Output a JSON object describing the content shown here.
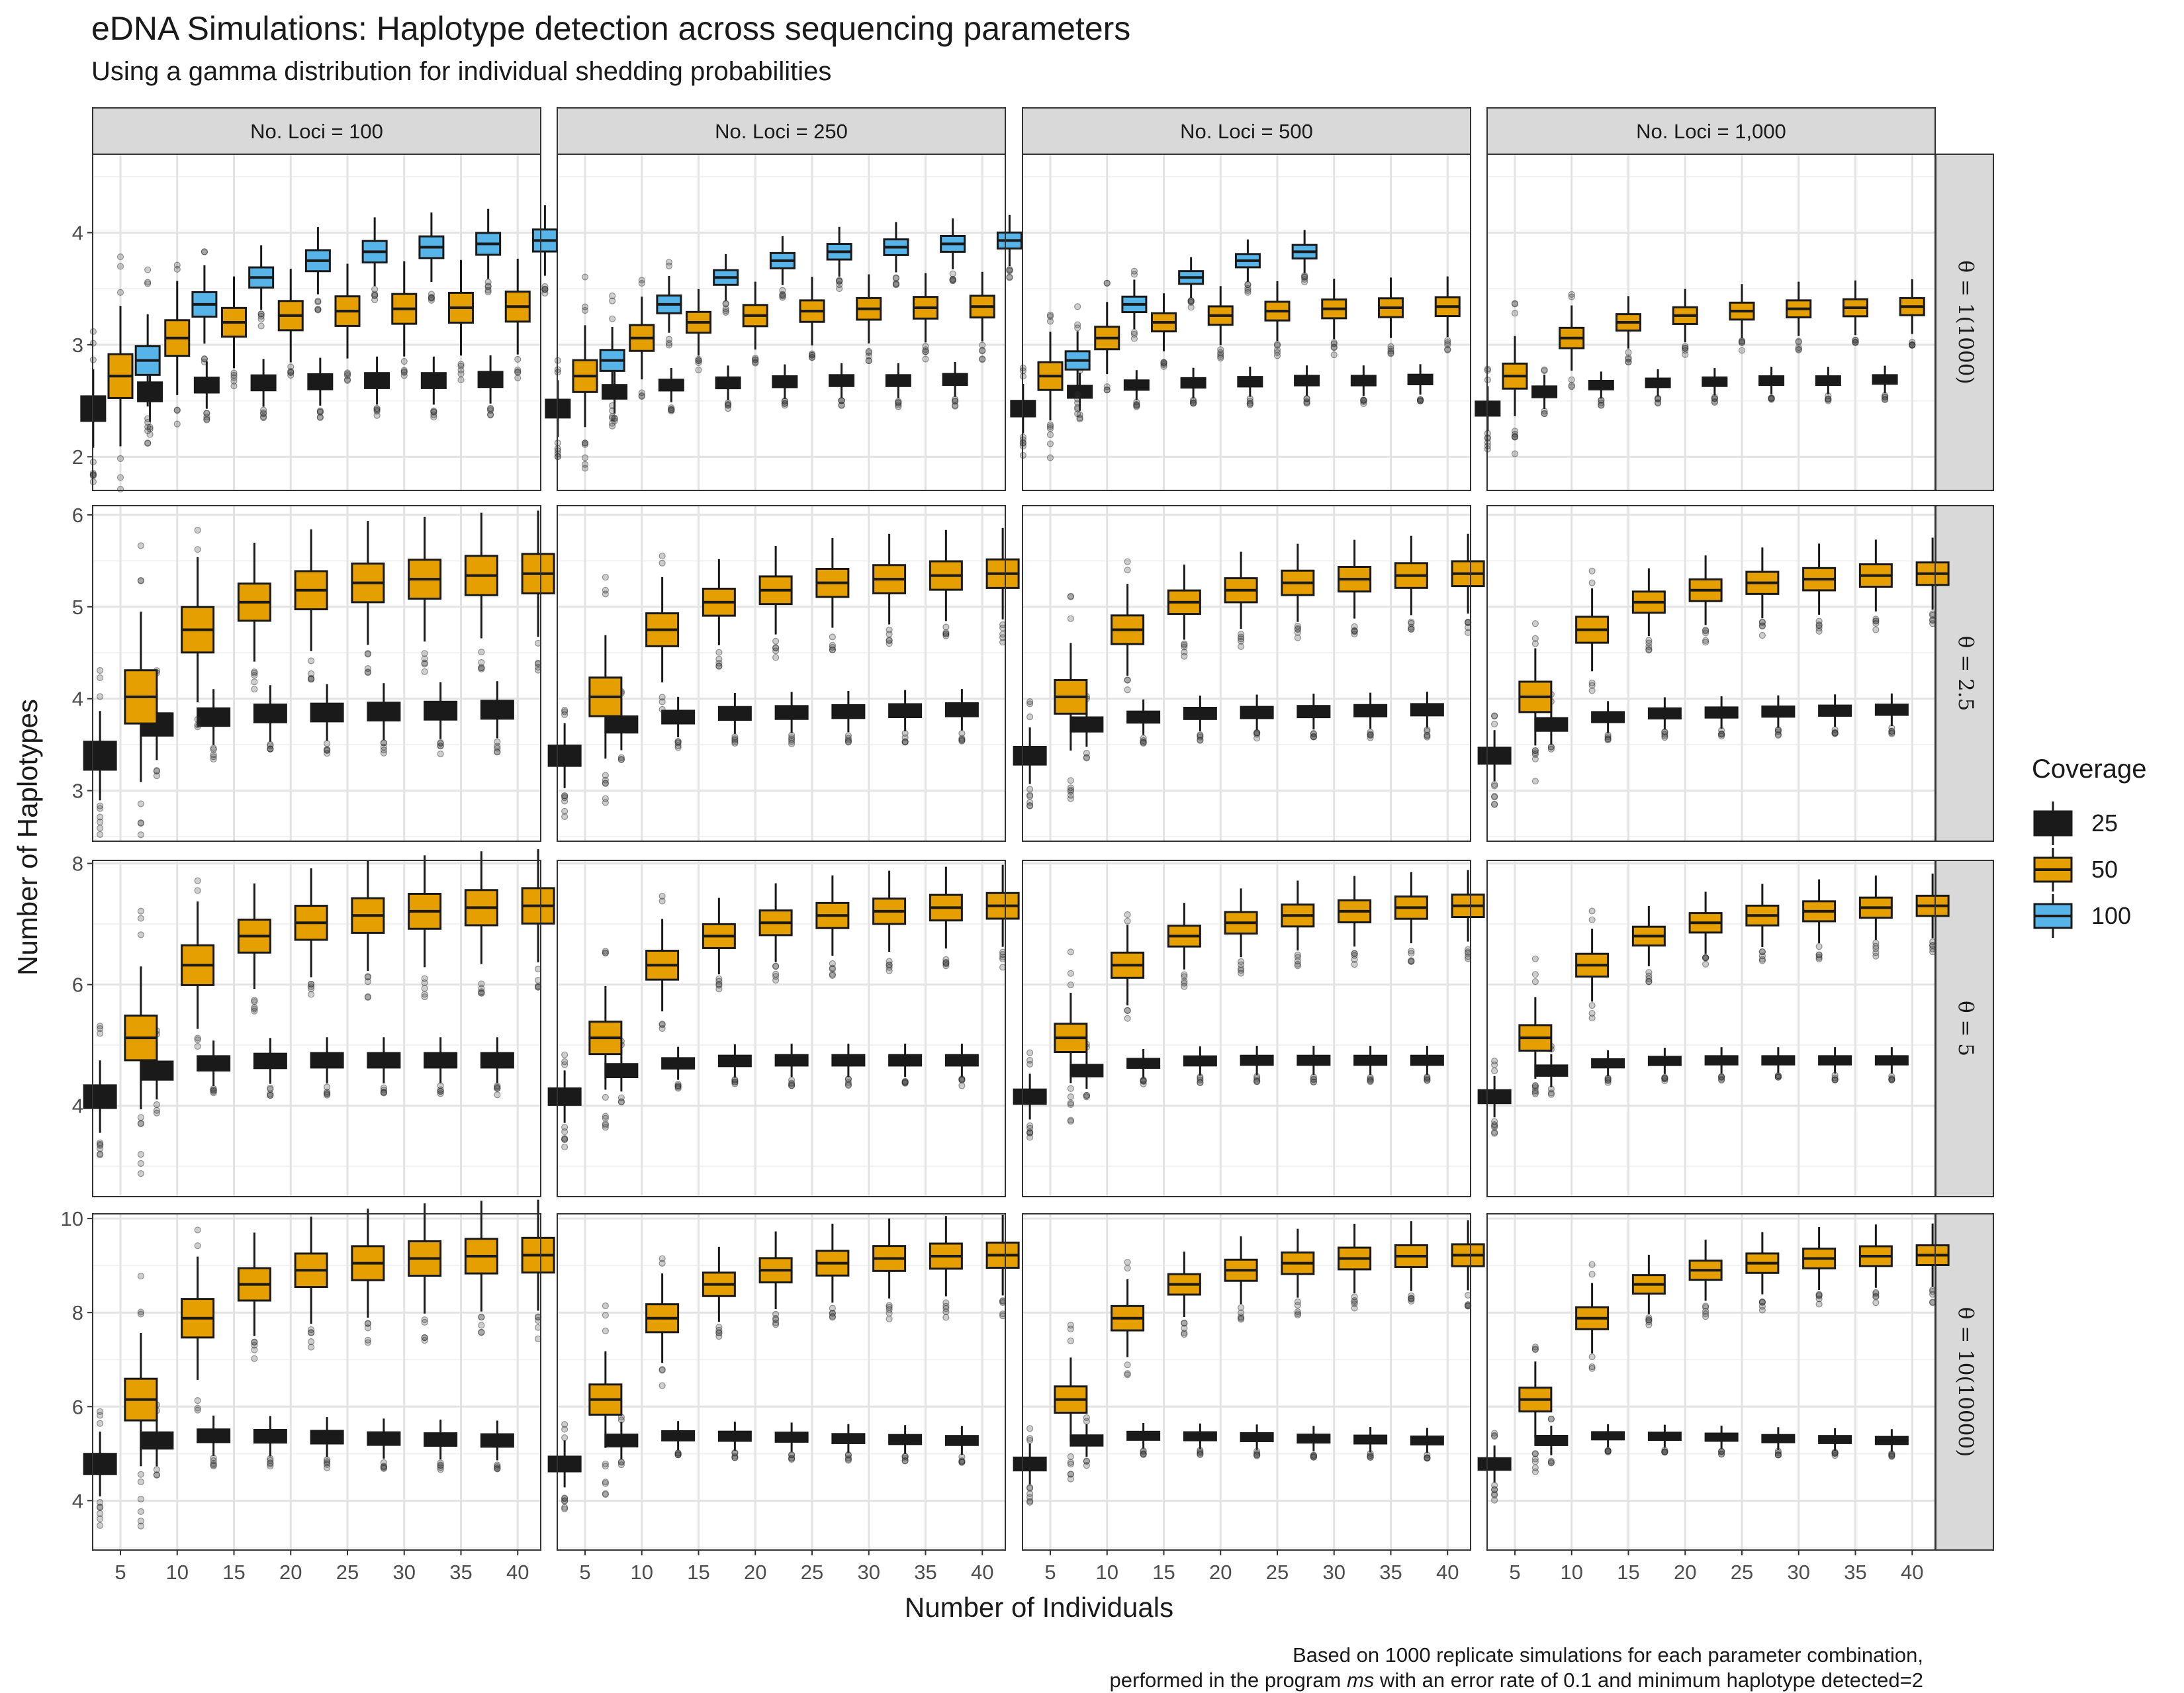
{
  "title": "eDNA Simulations: Haplotype detection across sequencing parameters",
  "subtitle": "Using a gamma distribution for individual shedding probabilities",
  "caption": {
    "line1": "Based on 1000 replicate simulations for each parameter combination,",
    "line2_prefix": "performed in the program ",
    "line2_program": "ms",
    "line2_suffix": " with an error rate of 0.1 and minimum haplotype detected=2"
  },
  "legend": {
    "title": "Coverage",
    "items": [
      {
        "label": "25",
        "color": "#1a1a1a"
      },
      {
        "label": "50",
        "color": "#E69F00"
      },
      {
        "label": "100",
        "color": "#56B4E9"
      }
    ]
  },
  "chart_data": {
    "type": "boxplot",
    "title": "eDNA Simulations: Haplotype detection across sequencing parameters",
    "subtitle": "Using a gamma distribution for individual shedding probabilities",
    "xlabel": "Number of Individuals",
    "ylabel": "Number of Haplotypes",
    "x_ticks": [
      5,
      10,
      15,
      20,
      25,
      30,
      35,
      40
    ],
    "legend_title": "Coverage",
    "legend_position": "right",
    "grid": true,
    "columns": [
      "No. Loci = 100",
      "No. Loci = 250",
      "No. Loci = 500",
      "No. Loci = 1,000"
    ],
    "rows": [
      {
        "label": "θ = 1(1000)",
        "ylim": [
          1.7,
          4.7
        ],
        "y_ticks": [
          2,
          3,
          4
        ],
        "series": [
          {
            "name": "25",
            "values": [
              2.43,
              2.58,
              2.64,
              2.66,
              2.67,
              2.68,
              2.68,
              2.69
            ]
          },
          {
            "name": "50",
            "values": [
              2.72,
              3.06,
              3.2,
              3.26,
              3.3,
              3.32,
              3.33,
              3.34
            ]
          },
          {
            "name": "100",
            "values": [
              2.86,
              3.36,
              3.6,
              3.75,
              3.83,
              3.87,
              3.9,
              3.93
            ]
          }
        ],
        "series_limits": {
          "100": [
            "x≤40",
            "x≤40",
            "x≤25",
            "none"
          ]
        }
      },
      {
        "label": "θ = 2.5",
        "ylim": [
          2.45,
          6.1
        ],
        "y_ticks": [
          3,
          4,
          5,
          6
        ],
        "series": [
          {
            "name": "25",
            "values": [
              3.38,
              3.72,
              3.8,
              3.84,
              3.85,
              3.86,
              3.87,
              3.88
            ]
          },
          {
            "name": "50",
            "values": [
              4.02,
              4.75,
              5.05,
              5.18,
              5.26,
              5.3,
              5.34,
              5.36
            ]
          }
        ]
      },
      {
        "label": "θ = 5",
        "ylim": [
          2.5,
          8.05
        ],
        "y_ticks": [
          4,
          6,
          8
        ],
        "series": [
          {
            "name": "25",
            "values": [
              4.15,
              4.58,
              4.7,
              4.74,
              4.75,
              4.75,
              4.75,
              4.75
            ]
          },
          {
            "name": "50",
            "values": [
              5.12,
              6.32,
              6.8,
              7.02,
              7.14,
              7.21,
              7.27,
              7.3
            ]
          }
        ]
      },
      {
        "label": "θ = 10(10000)",
        "ylim": [
          2.95,
          10.1
        ],
        "y_ticks": [
          4,
          6,
          8,
          10
        ],
        "series": [
          {
            "name": "25",
            "values": [
              4.78,
              5.28,
              5.38,
              5.37,
              5.35,
              5.32,
              5.3,
              5.28
            ]
          },
          {
            "name": "50",
            "values": [
              6.15,
              7.88,
              8.6,
              8.9,
              9.05,
              9.15,
              9.2,
              9.22
            ]
          }
        ]
      }
    ]
  }
}
